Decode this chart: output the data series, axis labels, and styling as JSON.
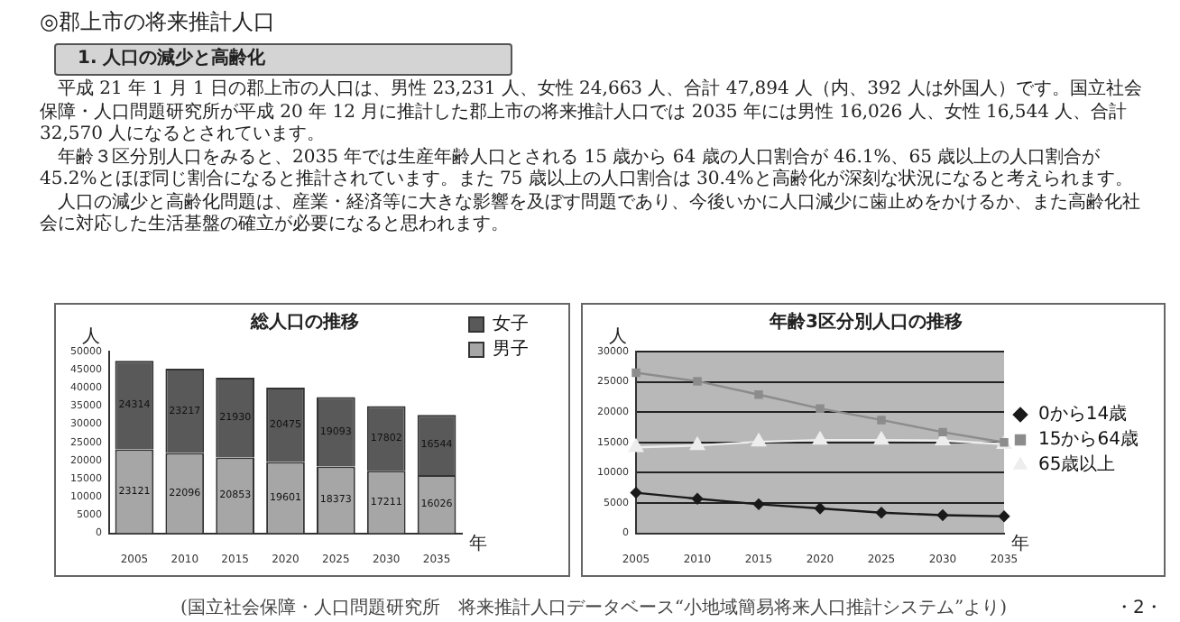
{
  "chart_data": [
    {
      "type": "bar",
      "title": "総人口の推移",
      "ylabel": "人",
      "xlabel": "年",
      "stacked": true,
      "data_labels": true,
      "legend": "top right",
      "grid": false,
      "annotations": [
        "◎郡上市の将来推計人口",
        "1. 人口の減少と高齢化",
        "平成 21 年 1 月 1 日の郡上市の人口は、男性 23,231 人、女性 24,663 人、合計 47,894 人（内、392 人は外国人）です。国立社会保障・人口問題研究所が平成 20 年 12 月に推計した郡上市の将来推計人口では 2035 年には男性 16,026 人、女性 16,544 人、合計 32,570 人になるとされています。",
        "年齢３区分別人口をみると、2035 年では生産年齢人口とされる 15 歳から 64 歳の人口割合が 46.1%、65 歳以上の人口割合が 45.2%とほぼ同じ割合になると推計されています。また 75 歳以上の人口割合は 30.4%と高齢化が深刻な状況になると考えられます。",
        "人口の減少と高齢化問題は、産業・経済等に大きな影響を及ぼす問題であり、今後いかに人口減少に歯止めをかけるか、また高齢化社会に対応した生活基盤の確立が必要になると思われます。"
      ],
      "categories": [
        "2005",
        "2010",
        "2015",
        "2020",
        "2025",
        "2030",
        "2035"
      ],
      "ylim": [
        0,
        50000
      ],
      "yticks": [
        0,
        5000,
        10000,
        15000,
        20000,
        25000,
        30000,
        35000,
        40000,
        45000,
        50000
      ],
      "series": [
        {
          "name": "男子",
          "color": "#a6a6a6",
          "values": [
            23121,
            22096,
            20853,
            19601,
            18373,
            17211,
            16026
          ]
        },
        {
          "name": "女子",
          "color": "#595959",
          "values": [
            24314,
            23217,
            21930,
            20475,
            19093,
            17802,
            16544
          ]
        }
      ]
    },
    {
      "type": "line",
      "title": "年齢3区分別人口の推移",
      "ylabel": "人",
      "xlabel": "年",
      "legend": "right",
      "grid": "y",
      "annotations": [
        "(国立社会保障・人口問題研究所　将来推計人口データベース“小地域簡易将来人口推計システム”より)",
        "・2・"
      ],
      "categories": [
        "2005",
        "2010",
        "2015",
        "2020",
        "2025",
        "2030",
        "2035"
      ],
      "ylim": [
        0,
        30000
      ],
      "yticks": [
        0,
        5000,
        10000,
        15000,
        20000,
        25000,
        30000
      ],
      "series": [
        {
          "name": "0から14歳",
          "color": "#1a1a1a",
          "marker": "diamond",
          "values": [
            6700,
            5700,
            4800,
            4100,
            3400,
            3000,
            2800
          ]
        },
        {
          "name": "15から64歳",
          "color": "#8c8c8c",
          "marker": "square",
          "values": [
            26500,
            25100,
            22900,
            20600,
            18700,
            16700,
            15000
          ]
        },
        {
          "name": "65歳以上",
          "color": "#ededed",
          "marker": "triangle",
          "values": [
            14200,
            14500,
            15100,
            15400,
            15400,
            15300,
            14700
          ]
        }
      ]
    }
  ]
}
